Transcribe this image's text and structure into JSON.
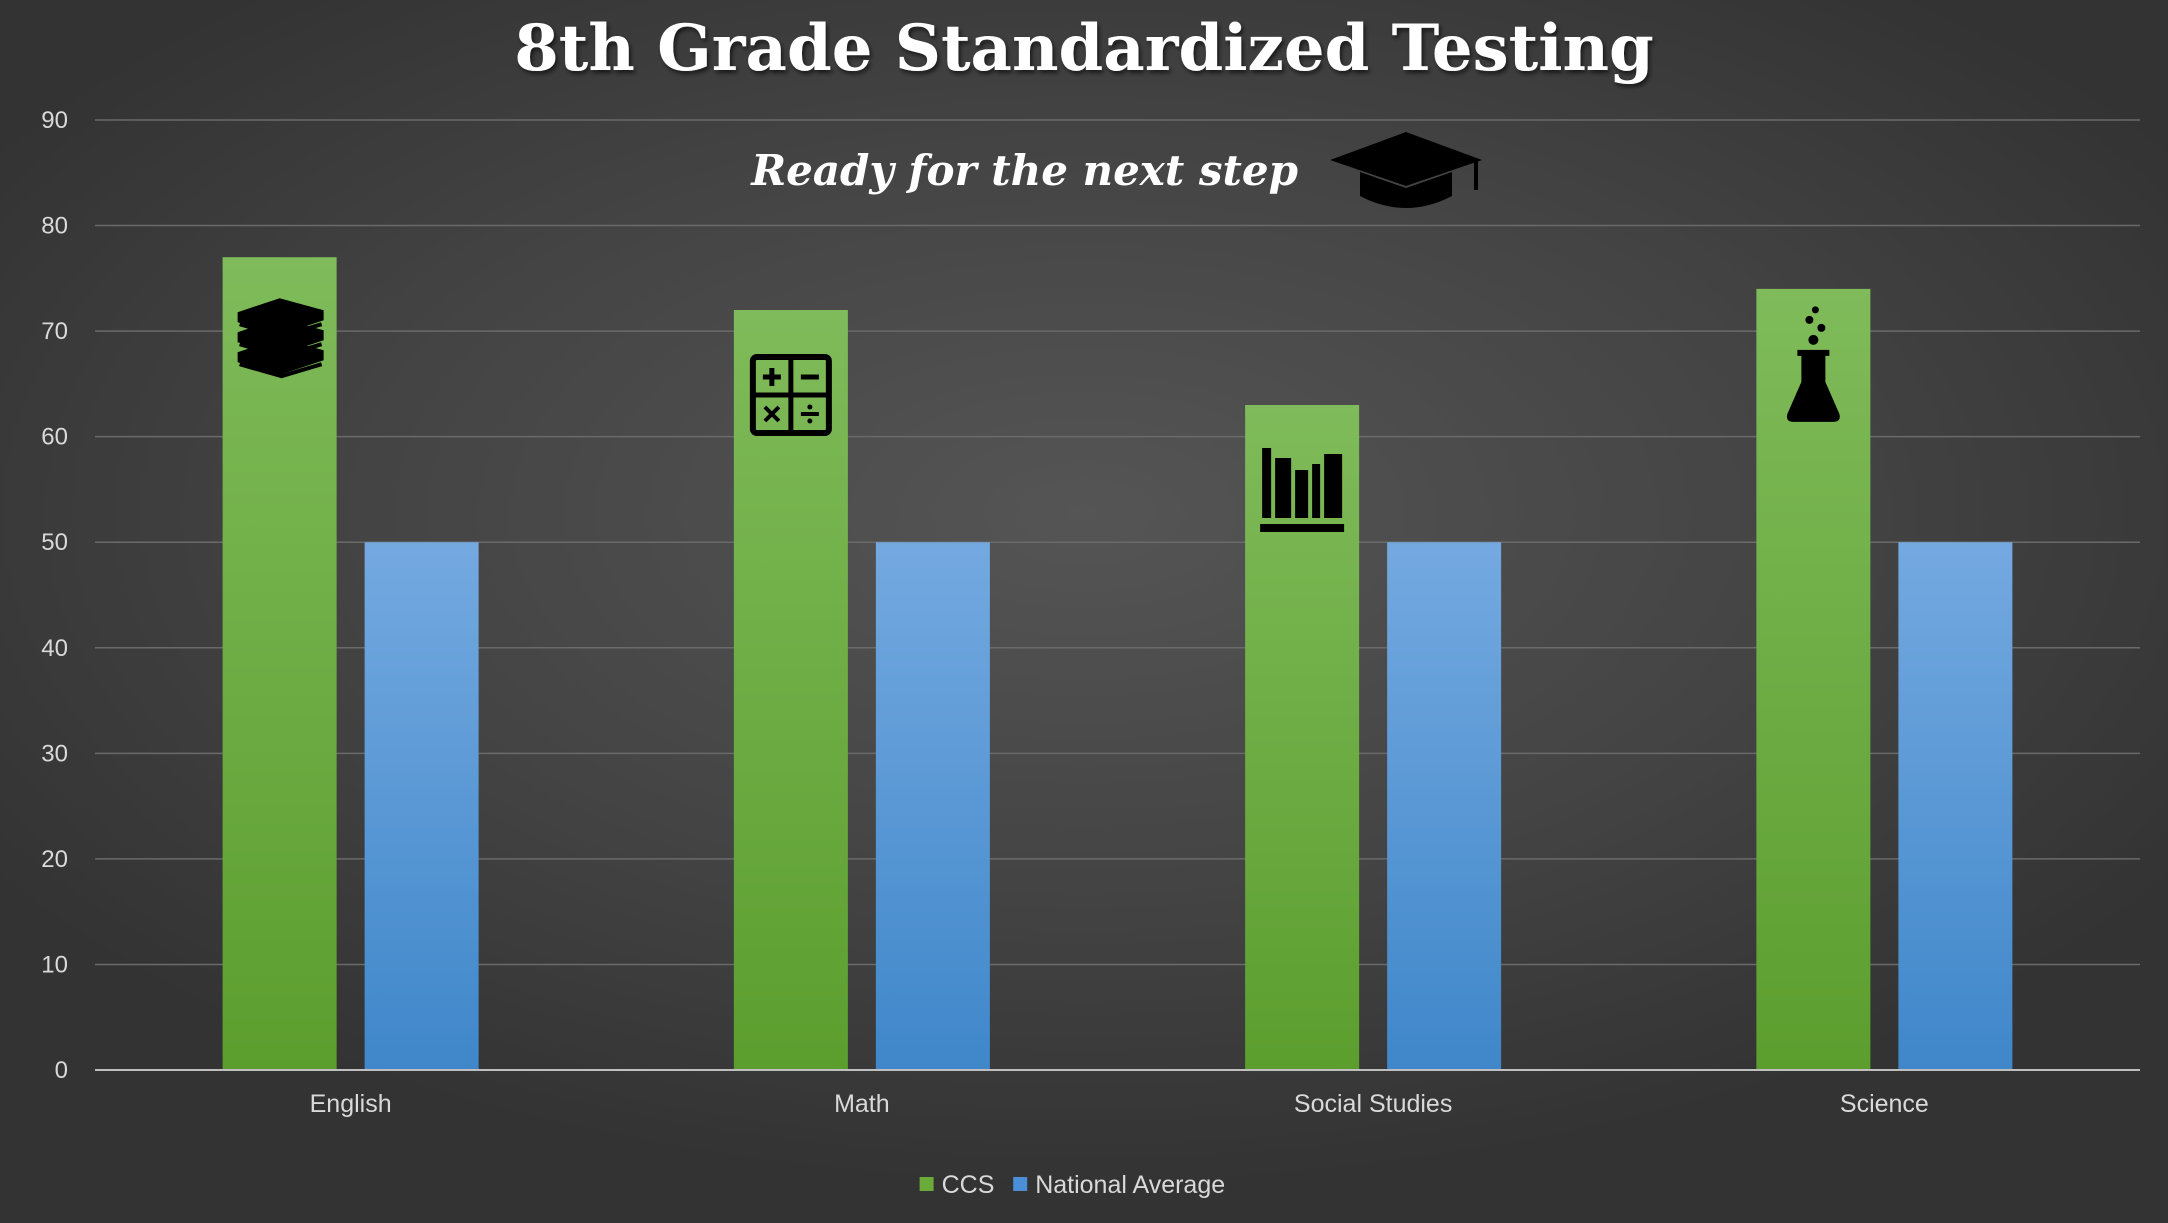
{
  "chart_data": {
    "type": "bar",
    "title": "8th Grade Standardized Testing",
    "subtitle": "Ready for the next step",
    "xlabel": "",
    "ylabel": "",
    "categories": [
      "English",
      "Math",
      "Social Studies",
      "Science"
    ],
    "series": [
      {
        "name": "CCS",
        "values": [
          77,
          72,
          63,
          74
        ],
        "color": "#6aaa3a"
      },
      {
        "name": "National Average",
        "values": [
          50,
          50,
          50,
          50
        ],
        "color": "#4a90d6"
      }
    ],
    "ylim": [
      0,
      90
    ],
    "yticks": [
      0,
      10,
      20,
      30,
      40,
      50,
      60,
      70,
      80,
      90
    ],
    "grid": true,
    "legend": "bottom-center",
    "icons": [
      "books-icon",
      "calculator-icon",
      "bookshelf-icon",
      "flask-icon"
    ],
    "subtitle_icon": "graduation-cap-icon"
  }
}
